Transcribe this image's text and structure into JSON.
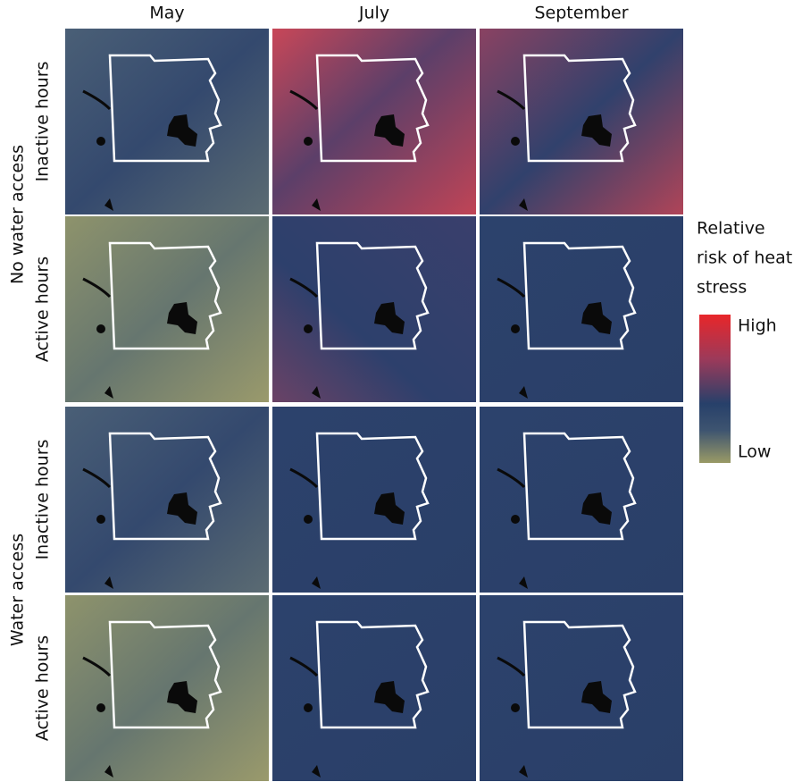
{
  "columns": [
    "May",
    "July",
    "September"
  ],
  "rows": [
    "Inactive hours",
    "Active hours",
    "Inactive hours",
    "Active hours"
  ],
  "groups": [
    "No water access",
    "Water access"
  ],
  "legend": {
    "title_lines": [
      "Relative",
      "risk of heat",
      "stress"
    ],
    "high": "High",
    "low": "Low"
  }
}
